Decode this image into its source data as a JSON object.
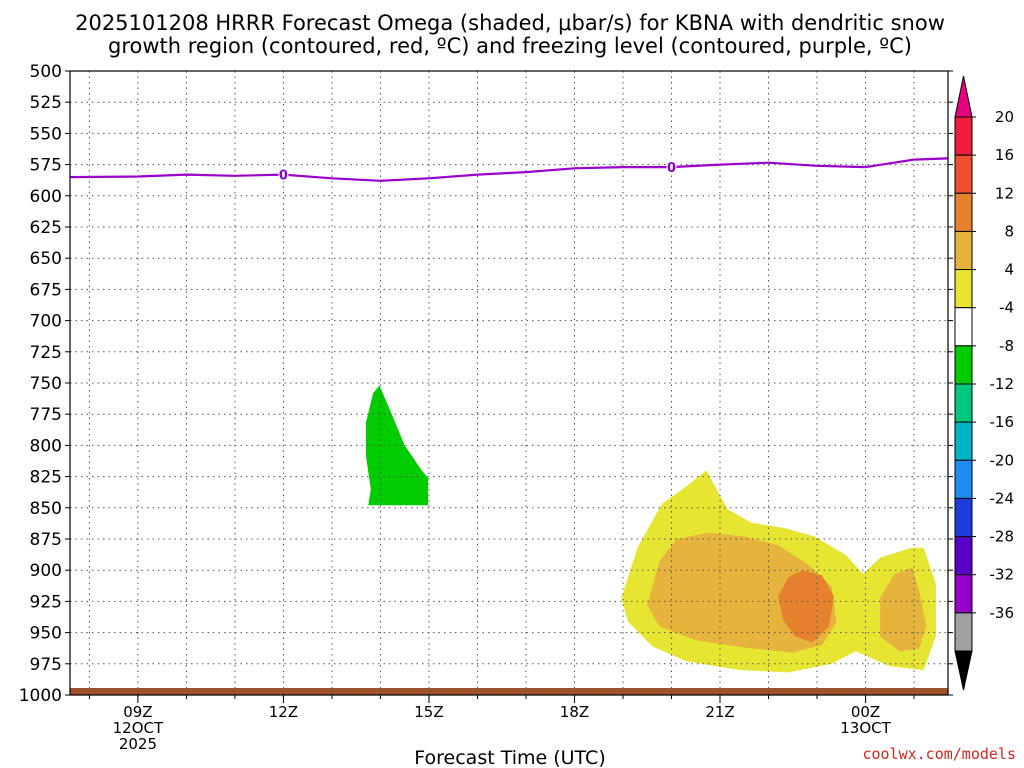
{
  "chart_data": {
    "type": "contour",
    "title_line1": "2025101208 HRRR Forecast Omega (shaded, μbar/s) for KBNA with dendritic snow",
    "title_line2": "growth region (contoured, red, ºC) and freezing level (contoured, purple, ºC)",
    "xlabel": "Forecast Time (UTC)",
    "credit": "coolwx.com/models",
    "xlim_hours": [
      7.6,
      25.7
    ],
    "ylim_hpa": [
      500,
      1000
    ],
    "y_ticks": [
      500,
      525,
      550,
      575,
      600,
      625,
      650,
      675,
      700,
      725,
      750,
      775,
      800,
      825,
      850,
      875,
      900,
      925,
      950,
      975,
      1000
    ],
    "x_ticks": [
      {
        "hour": 9,
        "lines": [
          "09Z",
          "12OCT",
          "2025"
        ]
      },
      {
        "hour": 12,
        "lines": [
          "12Z"
        ]
      },
      {
        "hour": 15,
        "lines": [
          "15Z"
        ]
      },
      {
        "hour": 18,
        "lines": [
          "18Z"
        ]
      },
      {
        "hour": 21,
        "lines": [
          "21Z"
        ]
      },
      {
        "hour": 24,
        "lines": [
          "00Z",
          "13OCT"
        ]
      }
    ],
    "grid": true,
    "freezing_level": {
      "color": "#9900cc",
      "label": "0",
      "label_points": [
        [
          12,
          583
        ],
        [
          20,
          577
        ]
      ],
      "points": [
        [
          7.6,
          585
        ],
        [
          9,
          584.5
        ],
        [
          10,
          583
        ],
        [
          11,
          584
        ],
        [
          12,
          583
        ],
        [
          13,
          586
        ],
        [
          14,
          588
        ],
        [
          15,
          586
        ],
        [
          16,
          583
        ],
        [
          17,
          581
        ],
        [
          18,
          578
        ],
        [
          19,
          577
        ],
        [
          20,
          577
        ],
        [
          21,
          575
        ],
        [
          22,
          573.5
        ],
        [
          23,
          576
        ],
        [
          24,
          577
        ],
        [
          25,
          571
        ],
        [
          25.7,
          570
        ]
      ]
    },
    "omega_regions": [
      {
        "level": "-8 to -4",
        "color": "#00cc00",
        "points": [
          [
            13.75,
            848
          ],
          [
            13.8,
            835
          ],
          [
            13.7,
            808
          ],
          [
            13.7,
            782
          ],
          [
            13.85,
            758
          ],
          [
            13.98,
            752
          ],
          [
            14.2,
            772
          ],
          [
            14.5,
            800
          ],
          [
            14.85,
            820
          ],
          [
            14.98,
            826
          ],
          [
            14.98,
            848
          ]
        ]
      },
      {
        "level": "4 to 8",
        "color": "#e6e632",
        "points": [
          [
            18.97,
            922
          ],
          [
            19.3,
            882
          ],
          [
            19.8,
            847
          ],
          [
            20.3,
            833
          ],
          [
            20.72,
            820
          ],
          [
            21.15,
            851
          ],
          [
            21.65,
            862
          ],
          [
            22.3,
            866
          ],
          [
            22.95,
            873
          ],
          [
            23.6,
            888
          ],
          [
            23.95,
            903
          ],
          [
            24.3,
            890
          ],
          [
            24.95,
            882
          ],
          [
            25.2,
            882
          ],
          [
            25.45,
            911
          ],
          [
            25.45,
            953
          ],
          [
            25.2,
            980
          ],
          [
            24.5,
            977
          ],
          [
            24.1,
            970
          ],
          [
            23.8,
            965
          ],
          [
            23.3,
            975
          ],
          [
            22.4,
            982
          ],
          [
            21.4,
            980
          ],
          [
            20.3,
            973
          ],
          [
            19.6,
            961
          ],
          [
            19.1,
            941
          ]
        ]
      },
      {
        "level": "8 to 12",
        "color": "#e6b43c",
        "points": [
          [
            19.5,
            928
          ],
          [
            19.75,
            893
          ],
          [
            20.1,
            875
          ],
          [
            20.75,
            870
          ],
          [
            21.5,
            873
          ],
          [
            22.2,
            880
          ],
          [
            22.8,
            895
          ],
          [
            23.3,
            913
          ],
          [
            23.4,
            942
          ],
          [
            23.1,
            960
          ],
          [
            22.5,
            966
          ],
          [
            21.5,
            962
          ],
          [
            20.5,
            956
          ],
          [
            19.75,
            945
          ]
        ]
      },
      {
        "level": "8 to 12",
        "color": "#e6b43c",
        "points": [
          [
            24.3,
            922
          ],
          [
            24.6,
            903
          ],
          [
            24.95,
            898
          ],
          [
            25.1,
            915
          ],
          [
            25.25,
            945
          ],
          [
            25.1,
            963
          ],
          [
            24.7,
            965
          ],
          [
            24.3,
            953
          ]
        ]
      },
      {
        "level": "12 to 16",
        "color": "#e6822d",
        "points": [
          [
            22.2,
            921
          ],
          [
            22.4,
            906
          ],
          [
            22.7,
            900
          ],
          [
            23.1,
            904
          ],
          [
            23.35,
            921
          ],
          [
            23.25,
            945
          ],
          [
            22.9,
            958
          ],
          [
            22.55,
            953
          ],
          [
            22.3,
            940
          ]
        ]
      }
    ],
    "ground_fill_color": "#a0522d",
    "colorbar": {
      "labels": [
        "20",
        "16",
        "12",
        "8",
        "4",
        "-4",
        "-8",
        "-12",
        "-16",
        "-20",
        "-24",
        "-28",
        "-32",
        "-36"
      ],
      "top_arrow_color": "#e60082",
      "bottom_arrow_color": "#000000",
      "colors": [
        "#f01e3c",
        "#f0502d",
        "#e6822d",
        "#e6b43c",
        "#e6e632",
        "#ffffff",
        "#00cc00",
        "#00c87d",
        "#00b4c8",
        "#1e8cf0",
        "#1e3cdc",
        "#5a00c8",
        "#9600c8",
        "#a0a0a0"
      ]
    }
  }
}
